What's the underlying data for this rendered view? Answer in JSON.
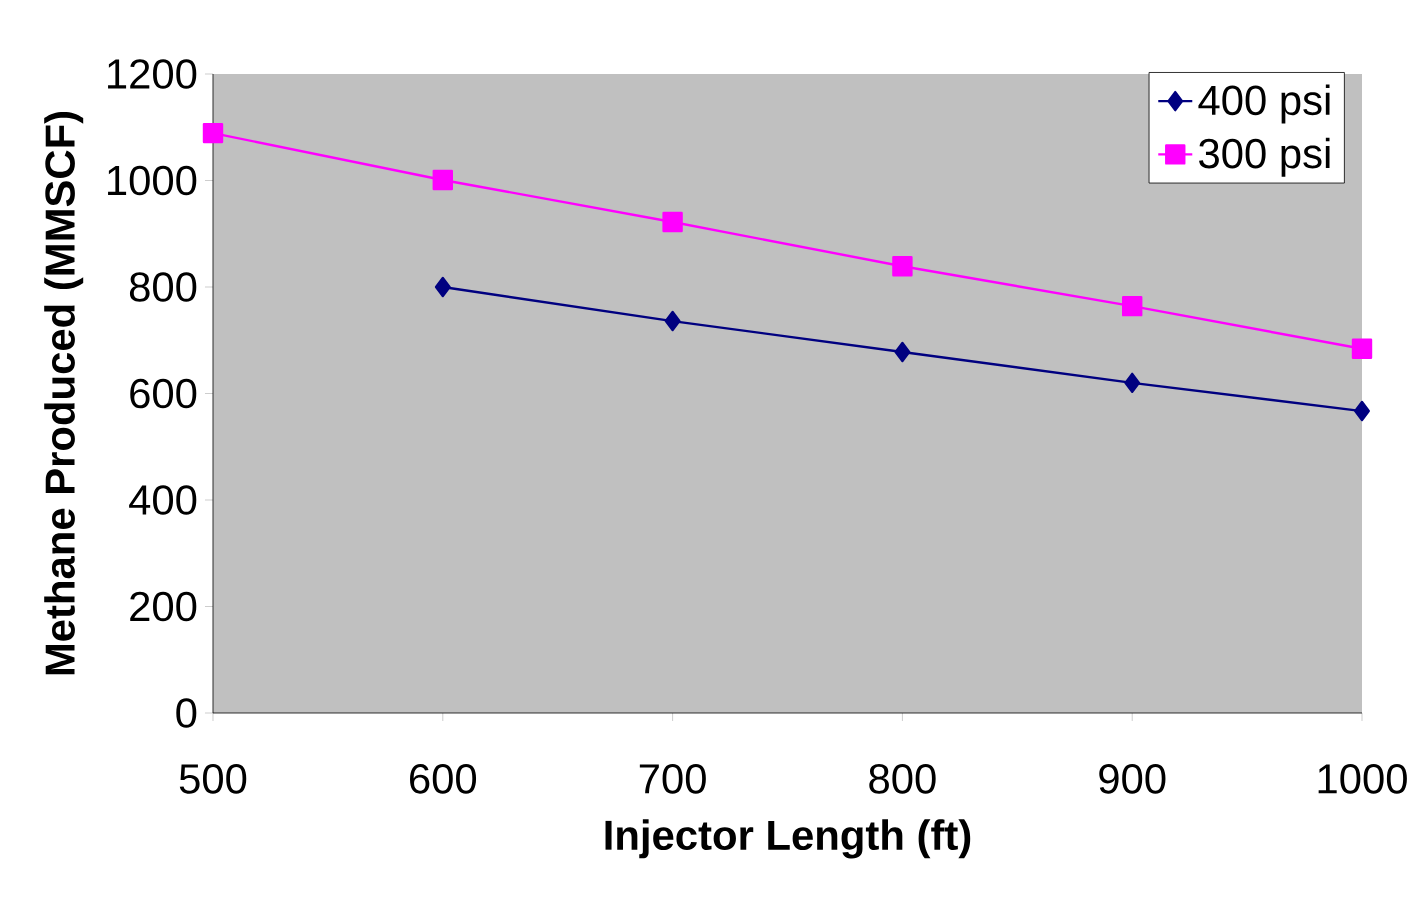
{
  "chart_data": {
    "type": "line",
    "xlabel": "Injector Length (ft)",
    "ylabel": "Methane Produced (MMSCF)",
    "x": [
      500,
      600,
      700,
      800,
      900,
      1000
    ],
    "series": [
      {
        "name": "400 psi",
        "color": "#000080",
        "marker": "diamond",
        "values": [
          null,
          800,
          736,
          678,
          620,
          567
        ]
      },
      {
        "name": "300 psi",
        "color": "#ff00ff",
        "marker": "square",
        "values": [
          1089,
          1001,
          922,
          839,
          764,
          684
        ]
      }
    ],
    "xlim": [
      500,
      1000
    ],
    "xticks": [
      500,
      600,
      700,
      800,
      900,
      1000
    ],
    "ylim": [
      0,
      1200
    ],
    "yticks": [
      0,
      200,
      400,
      600,
      800,
      1000,
      1200
    ],
    "legend": "top right",
    "grid": false,
    "line_style": "solid"
  }
}
